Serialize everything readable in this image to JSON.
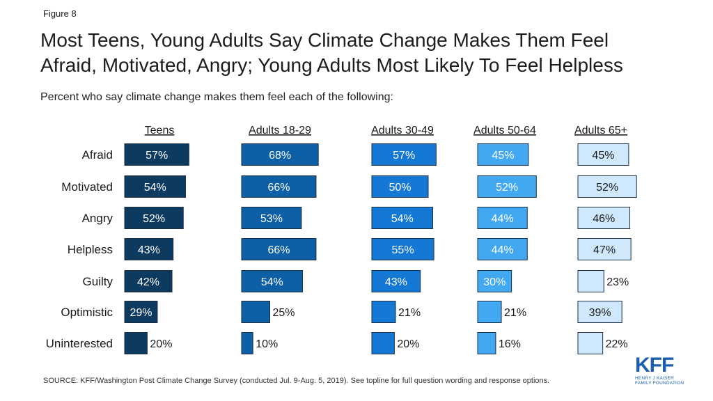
{
  "figure_label": "Figure 8",
  "title_line1": "Most Teens, Young Adults Say Climate Change Makes Them Feel",
  "title_line2": "Afraid, Motivated, Angry; Young Adults Most Likely To Feel Helpless",
  "subtitle": "Percent who say climate change makes them feel each of the following:",
  "source_text": "SOURCE: KFF/Washington Post Climate Change Survey (conducted Jul. 9-Aug. 5, 2019). See topline for full question wording and response options.",
  "logo": {
    "text": "KFF",
    "subtitle": "HENRY J KAISER FAMILY FOUNDATION"
  },
  "colors": {
    "Teens": "#0d3a5f",
    "Adults 18-29": "#0d5fa6",
    "Adults 30-49": "#1478d4",
    "Adults 50-64": "#43a8f2",
    "Adults 65+": "#cfe8fc",
    "outline": "#1b2e44"
  },
  "chart_data": {
    "type": "bar",
    "orientation": "horizontal",
    "categories": [
      "Afraid",
      "Motivated",
      "Angry",
      "Helpless",
      "Guilty",
      "Optimistic",
      "Uninterested"
    ],
    "value_suffix": "%",
    "series": [
      {
        "name": "Teens",
        "values": [
          57,
          54,
          52,
          43,
          42,
          29,
          20
        ]
      },
      {
        "name": "Adults 18-29",
        "values": [
          68,
          66,
          53,
          66,
          54,
          25,
          10
        ]
      },
      {
        "name": "Adults 30-49",
        "values": [
          57,
          50,
          54,
          55,
          43,
          21,
          20
        ]
      },
      {
        "name": "Adults 50-64",
        "values": [
          45,
          52,
          44,
          44,
          30,
          21,
          16
        ]
      },
      {
        "name": "Adults 65+",
        "values": [
          45,
          52,
          46,
          47,
          23,
          39,
          22
        ]
      }
    ]
  }
}
